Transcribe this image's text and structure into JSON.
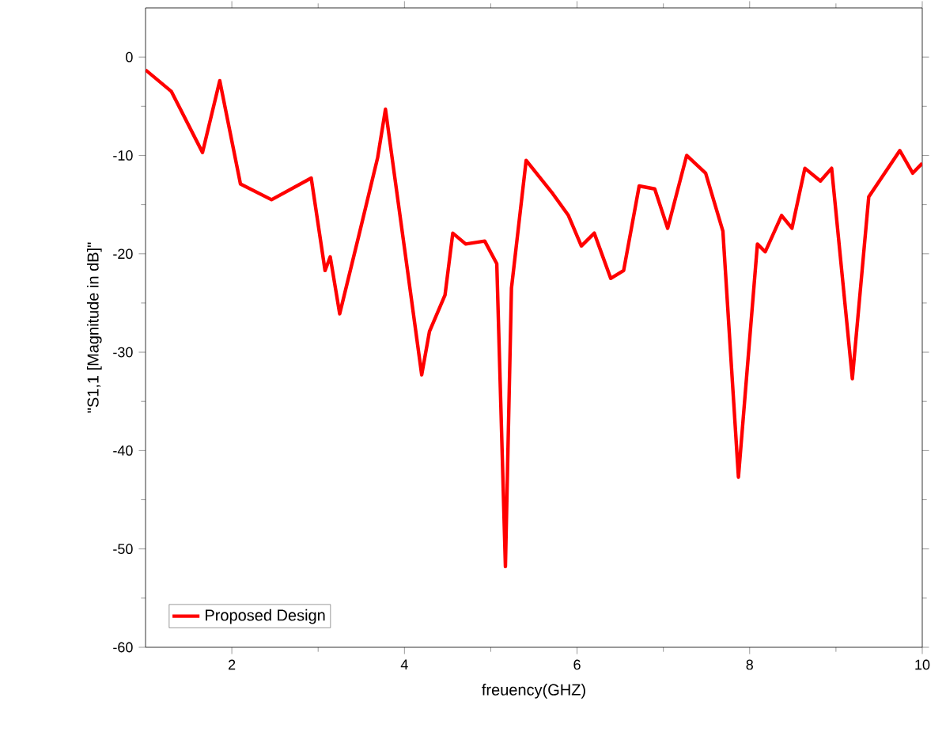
{
  "chart_data": {
    "type": "line",
    "xlabel": "freuency(GHZ)",
    "ylabel": "\"S1,1 [Magnitude in dB]\"",
    "xlim": [
      1,
      10
    ],
    "xticks": [
      2,
      4,
      6,
      8,
      10
    ],
    "ylim": [
      -60,
      5
    ],
    "yticks": [
      0,
      -10,
      -20,
      -30,
      -40,
      -50,
      -60
    ],
    "legend": "bottom left",
    "grid": false,
    "x": [
      1.0,
      1.3,
      1.66,
      1.86,
      2.1,
      2.46,
      2.92,
      3.08,
      3.14,
      3.25,
      3.47,
      3.69,
      3.78,
      4.0,
      4.2,
      4.29,
      4.47,
      4.56,
      4.71,
      4.93,
      5.07,
      5.17,
      5.24,
      5.41,
      5.72,
      5.9,
      6.05,
      6.2,
      6.39,
      6.54,
      6.72,
      6.9,
      7.05,
      7.27,
      7.49,
      7.69,
      7.87,
      8.09,
      8.18,
      8.37,
      8.49,
      8.64,
      8.82,
      8.95,
      9.19,
      9.38,
      9.74,
      9.89,
      10.0
    ],
    "series": [
      {
        "name": "Proposed Design",
        "color": "#ff0000",
        "values": [
          -1.3,
          -3.5,
          -9.7,
          -2.4,
          -12.9,
          -14.5,
          -12.3,
          -21.7,
          -20.3,
          -26.1,
          -18.2,
          -10.2,
          -5.3,
          -19.4,
          -32.3,
          -27.9,
          -24.2,
          -17.9,
          -19.0,
          -18.7,
          -21.0,
          -51.8,
          -23.5,
          -10.5,
          -13.9,
          -16.1,
          -19.2,
          -17.9,
          -22.5,
          -21.7,
          -13.1,
          -13.4,
          -17.4,
          -10.0,
          -11.8,
          -17.7,
          -42.7,
          -19.0,
          -19.8,
          -16.1,
          -17.4,
          -11.3,
          -12.6,
          -11.3,
          -32.7,
          -14.2,
          -9.5,
          -11.8,
          -10.8
        ]
      }
    ]
  }
}
